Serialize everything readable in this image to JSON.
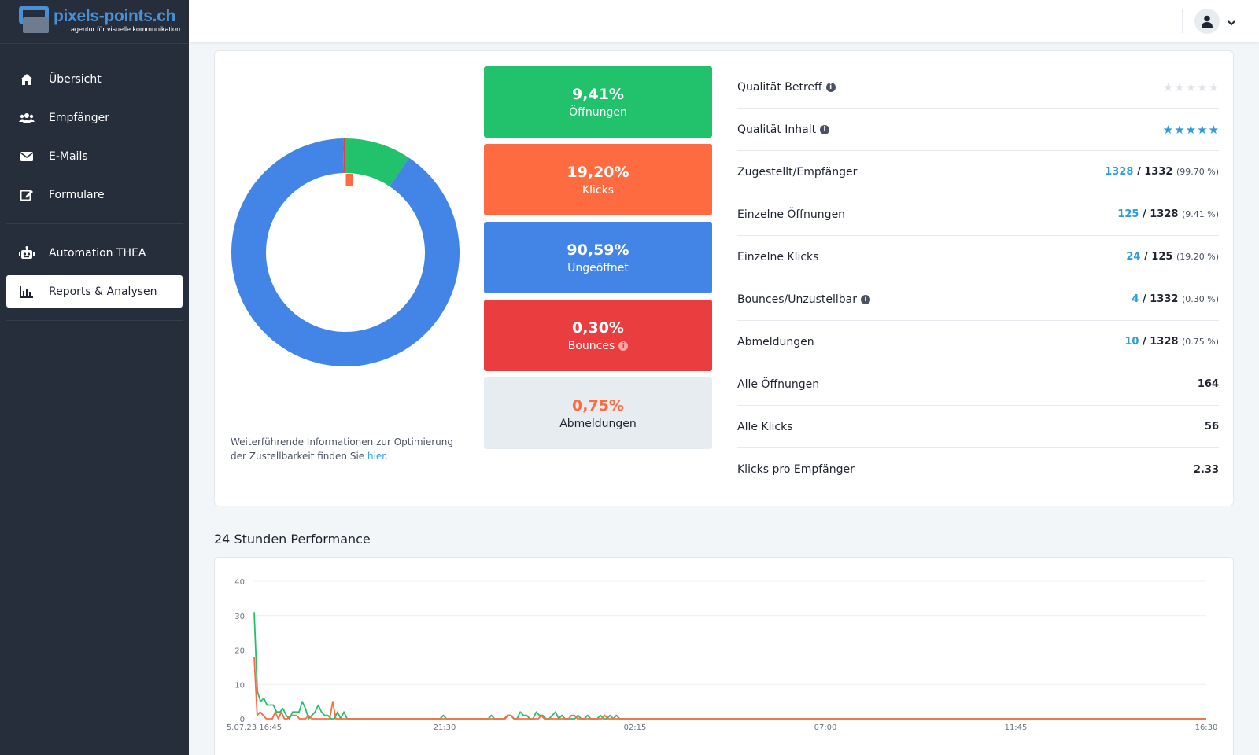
{
  "brand": {
    "name": "pixels-points.ch",
    "tagline": "agentur für visuelle kommunikation"
  },
  "sidebar": {
    "items": [
      {
        "label": "Übersicht",
        "icon": "home-icon"
      },
      {
        "label": "Empfänger",
        "icon": "users-icon"
      },
      {
        "label": "E-Mails",
        "icon": "envelope-icon"
      },
      {
        "label": "Formulare",
        "icon": "edit-form-icon"
      },
      {
        "label": "Automation THEA",
        "icon": "robot-icon"
      },
      {
        "label": "Reports & Analysen",
        "icon": "bar-chart-icon",
        "active": true
      }
    ]
  },
  "topbar": {
    "user_icon": "user-icon",
    "menu_icon": "chevron-down-icon"
  },
  "donut": {
    "slices": [
      {
        "label": "Öffnungen",
        "value": 9.41,
        "color": "#22c16b"
      },
      {
        "label": "Ungeöffnet",
        "value": 90.59,
        "color": "#4285e7"
      },
      {
        "label": "Bounces",
        "value": 0.3,
        "color": "#e93d3f"
      }
    ],
    "inner_marker": {
      "label": "Klicks",
      "color": "#ff6b40"
    }
  },
  "info_note": {
    "text": "Weiterführende Informationen zur Optimierung der Zustellbarkeit finden Sie ",
    "link": "hier",
    "end": "."
  },
  "tiles": [
    {
      "pct": "9,41%",
      "label": "Öffnungen"
    },
    {
      "pct": "19,20%",
      "label": "Klicks"
    },
    {
      "pct": "90,59%",
      "label": "Ungeöffnet"
    },
    {
      "pct": "0,30%",
      "label": "Bounces"
    },
    {
      "pct": "0,75%",
      "label": "Abmeldungen"
    }
  ],
  "metrics": {
    "quality_subject": {
      "label": "Qualität Betreff",
      "stars_filled": 0,
      "stars_total": 5
    },
    "quality_content": {
      "label": "Qualität Inhalt",
      "stars_filled": 5,
      "stars_total": 5
    },
    "delivered": {
      "label": "Zugestellt/Empfänger",
      "a": "1328",
      "b": "1332",
      "pct": "(99.70 %)"
    },
    "unique_opens": {
      "label": "Einzelne Öffnungen",
      "a": "125",
      "b": "1328",
      "pct": "(9.41 %)"
    },
    "unique_clicks": {
      "label": "Einzelne Klicks",
      "a": "24",
      "b": "125",
      "pct": "(19.20 %)"
    },
    "bounces": {
      "label": "Bounces/Unzustellbar",
      "a": "4",
      "b": "1332",
      "pct": "(0.30 %)"
    },
    "unsubscribes": {
      "label": "Abmeldungen",
      "a": "10",
      "b": "1328",
      "pct": "(0.75 %)"
    },
    "all_opens": {
      "label": "Alle Öffnungen",
      "value": "164"
    },
    "all_clicks": {
      "label": "Alle Klicks",
      "value": "56"
    },
    "clicks_per_recipient": {
      "label": "Klicks pro Empfänger",
      "value": "2.33"
    }
  },
  "performance": {
    "title": "24 Stunden Performance"
  },
  "chart_data": {
    "type": "line",
    "title": "24 Stunden Performance",
    "ylim": [
      0,
      40
    ],
    "yticks": [
      0,
      10,
      20,
      30,
      40
    ],
    "xticks": [
      "5.07.23 16:45",
      "21:30",
      "02:15",
      "07:00",
      "11:45",
      "16:30"
    ],
    "grid": true,
    "series": [
      {
        "color": "#22c16b",
        "values": [
          31,
          8,
          5,
          6,
          4,
          4,
          4,
          2,
          2,
          3,
          1,
          0,
          2,
          2,
          2,
          5,
          3,
          0,
          1,
          2,
          4,
          2,
          1,
          1,
          0,
          0,
          2,
          0,
          2,
          0,
          0,
          0,
          0,
          0,
          0,
          0,
          0,
          0,
          0,
          0,
          0,
          0,
          0,
          0,
          0,
          0,
          0,
          0,
          0,
          0,
          0,
          0,
          0,
          0,
          0,
          0,
          0,
          0,
          0,
          1,
          0,
          0,
          0,
          0,
          0,
          0,
          0,
          0,
          0,
          0,
          0,
          0,
          0,
          0,
          1,
          0,
          0,
          0,
          0,
          1,
          1,
          0,
          0,
          2,
          1,
          1,
          0,
          0,
          2,
          1,
          1,
          0,
          0,
          1,
          2,
          0,
          1,
          0,
          0,
          0,
          0,
          1,
          0,
          0,
          1,
          0,
          0,
          0,
          1,
          0,
          0,
          1,
          0,
          1,
          0,
          0,
          0,
          0,
          0,
          0,
          0,
          0,
          0,
          0,
          0,
          0,
          0,
          0,
          0,
          0,
          0,
          0,
          0,
          0,
          0,
          0,
          0,
          0,
          0,
          0,
          0,
          0,
          0,
          0,
          0,
          0,
          0,
          0,
          0,
          0,
          0,
          0,
          0,
          0,
          0,
          0,
          0,
          0,
          0,
          0,
          0,
          0,
          0,
          0,
          0,
          0,
          0,
          0,
          0,
          0,
          0,
          0,
          0,
          0,
          0,
          0,
          0,
          0,
          0,
          0,
          0,
          0,
          0,
          0,
          0,
          0,
          0,
          0,
          0,
          0,
          0,
          0,
          0,
          0,
          0,
          0,
          0,
          0,
          0,
          0,
          0,
          0,
          0,
          0,
          0,
          0,
          0,
          0,
          0,
          0,
          0,
          0,
          0,
          0,
          0,
          0,
          0,
          0,
          0,
          0,
          0,
          0,
          0,
          0,
          0,
          0,
          0,
          0,
          0,
          0,
          0,
          0,
          0,
          0,
          0,
          0,
          0,
          0,
          0,
          0,
          0,
          0,
          0,
          0,
          0,
          0,
          0,
          0,
          0,
          0,
          0,
          0,
          0,
          0,
          0,
          0,
          0,
          0,
          0,
          0,
          0,
          0,
          0,
          0,
          0,
          0,
          0,
          0,
          0,
          0,
          0,
          0,
          0,
          0,
          0,
          0,
          0,
          0,
          0,
          0,
          0,
          0,
          0,
          0,
          0,
          0,
          0,
          0,
          0,
          0,
          0,
          0,
          0,
          0,
          0,
          0,
          0,
          0
        ]
      },
      {
        "color": "#ff6b40",
        "values": [
          18,
          1,
          2,
          1,
          0,
          0,
          0,
          2,
          0,
          2,
          0,
          0,
          1,
          1,
          1,
          0,
          0,
          0,
          1,
          0,
          0,
          0,
          0,
          0,
          0,
          0,
          5,
          0,
          0,
          0,
          0,
          0,
          0,
          0,
          0,
          0,
          0,
          0,
          0,
          0,
          0,
          0,
          0,
          0,
          0,
          0,
          0,
          0,
          0,
          0,
          0,
          0,
          0,
          0,
          0,
          0,
          0,
          0,
          0,
          0,
          0,
          0,
          0,
          0,
          0,
          0,
          0,
          0,
          0,
          0,
          0,
          0,
          0,
          0,
          0,
          0,
          0,
          0,
          0,
          0,
          0,
          0,
          0,
          0,
          1,
          1,
          0,
          0,
          0,
          0,
          0,
          0,
          0,
          0,
          0,
          1,
          0,
          0,
          0,
          0,
          0,
          0,
          0,
          0,
          0,
          1,
          1,
          0,
          0,
          0,
          0,
          0,
          0,
          0,
          0,
          0,
          1,
          0,
          0,
          0,
          0,
          0,
          0,
          0,
          0,
          0,
          0,
          0,
          0,
          0,
          0,
          0,
          0,
          0,
          0,
          0,
          0,
          0,
          0,
          0,
          0,
          0,
          0,
          0,
          0,
          0,
          0,
          0,
          0,
          0,
          0,
          0,
          0,
          0,
          0,
          0,
          0,
          0,
          0,
          0,
          0,
          0,
          0,
          0,
          0,
          0,
          0,
          0,
          0,
          0,
          0,
          0,
          0,
          0,
          0,
          0,
          0,
          0,
          0,
          0,
          0,
          0,
          0,
          0,
          0,
          0,
          0,
          0,
          0,
          0,
          0,
          0,
          0,
          0,
          0,
          0,
          0,
          0,
          0,
          0,
          0,
          0,
          0,
          0,
          0,
          0,
          0,
          0,
          0,
          0,
          0,
          0,
          0,
          0,
          0,
          0,
          0,
          0,
          0,
          0,
          0,
          0,
          0,
          0,
          0,
          0,
          0,
          0,
          0,
          0,
          0,
          0,
          0,
          0,
          0,
          0,
          0,
          0,
          0,
          0,
          0,
          0,
          0,
          0,
          0,
          0,
          0,
          0,
          0,
          0,
          0,
          0,
          0,
          0,
          0,
          0,
          0,
          0,
          0,
          0,
          0,
          0,
          0,
          0,
          0,
          0,
          0,
          0,
          0,
          0,
          0,
          0,
          0,
          0,
          0,
          0,
          0,
          0,
          0,
          0,
          0,
          0,
          0,
          0,
          0,
          0,
          0,
          0,
          0,
          0,
          0,
          0,
          0,
          0,
          0,
          0,
          0,
          0,
          0,
          0,
          0,
          0,
          0,
          0,
          0,
          0,
          0,
          0,
          0,
          0,
          0,
          0,
          0,
          0,
          0,
          0
        ]
      }
    ]
  }
}
